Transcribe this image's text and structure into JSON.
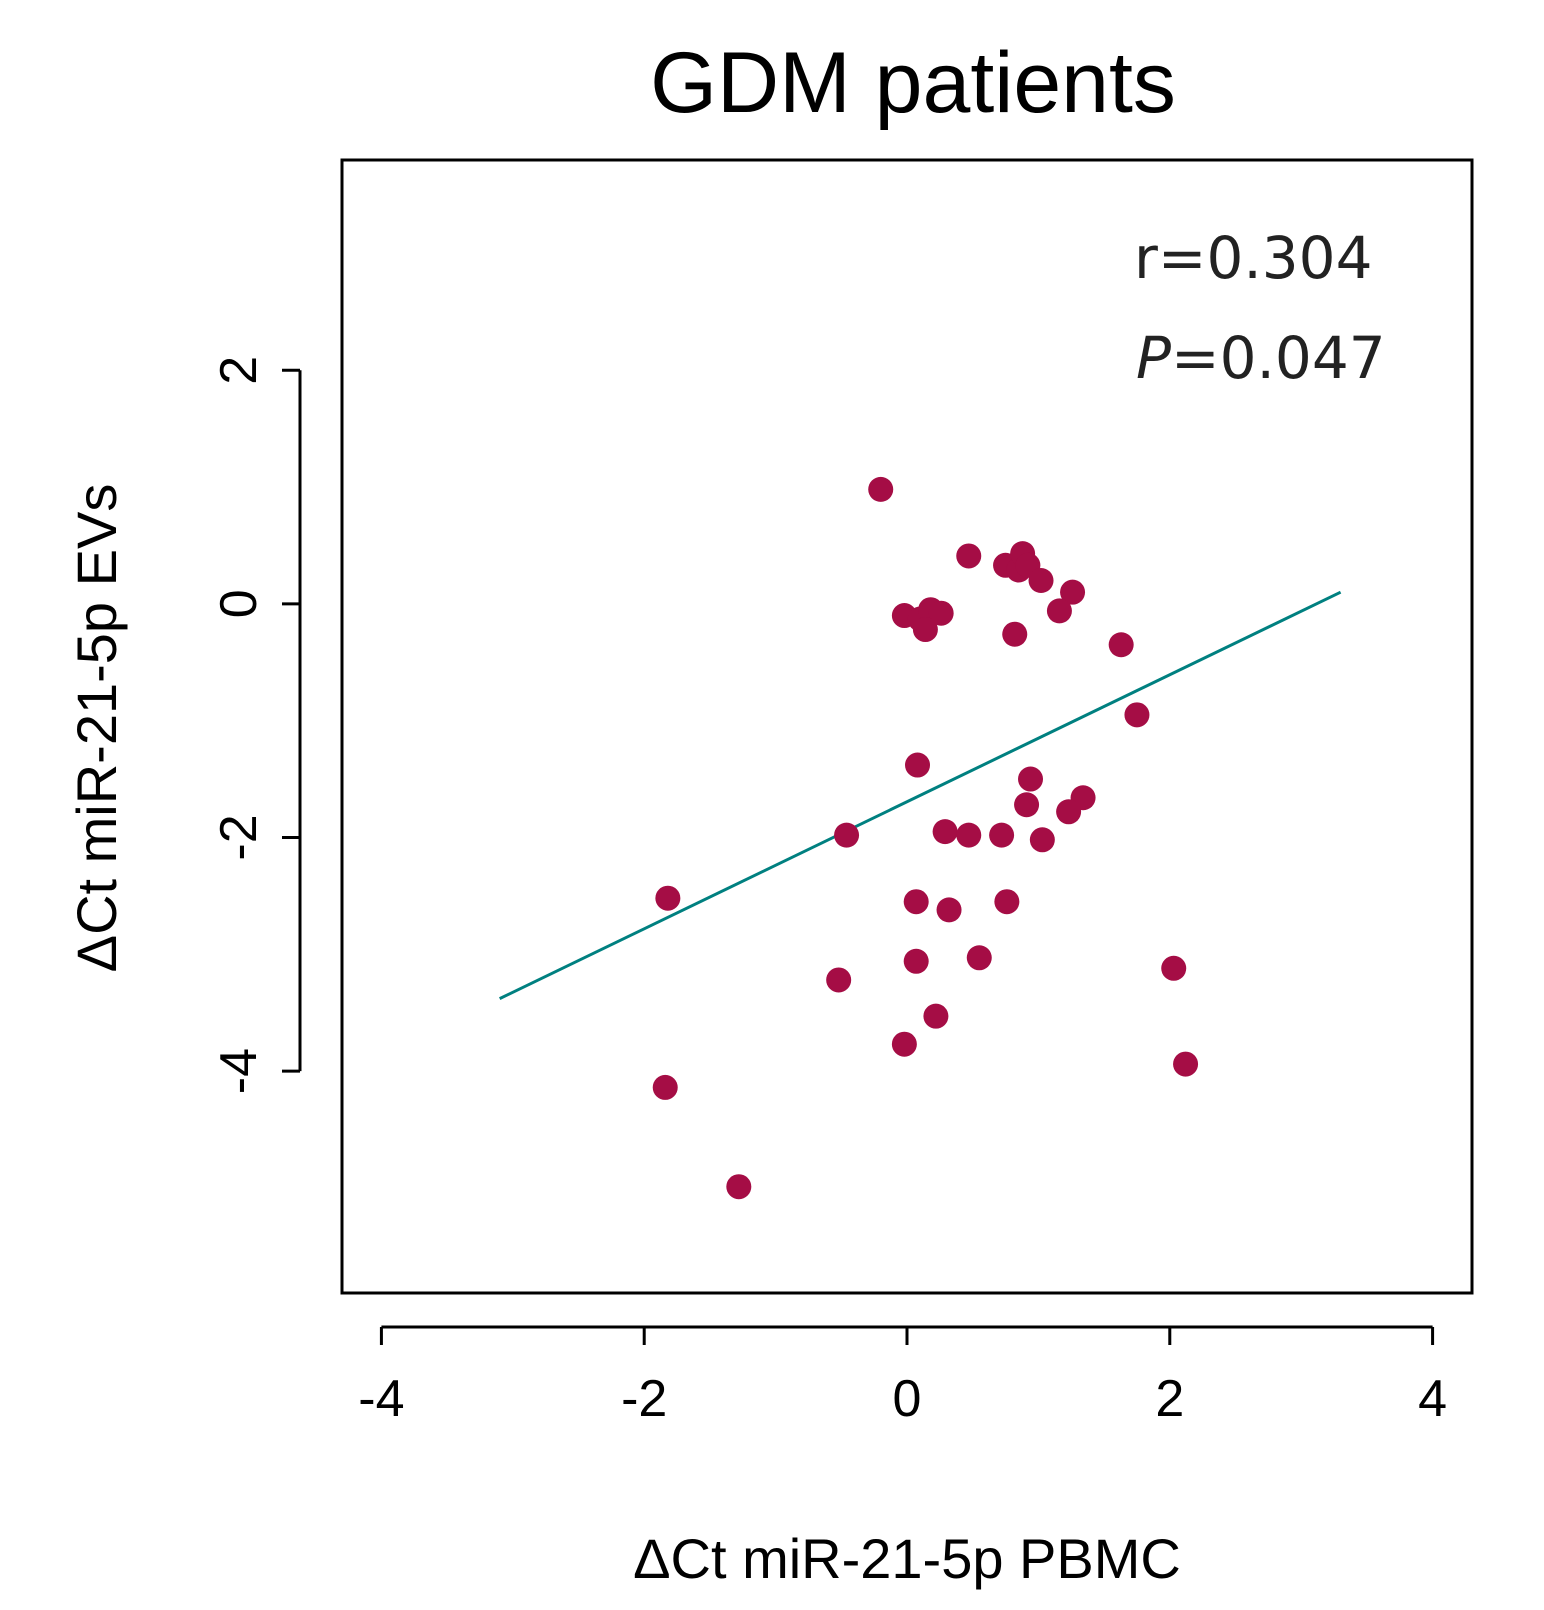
{
  "chart_data": {
    "type": "scatter",
    "title": "GDM patients",
    "xlabel": "ΔCt miR-21-5p PBMC",
    "ylabel": "ΔCt miR-21-5p EVs",
    "xlim": [
      -4.3,
      4.3
    ],
    "ylim": [
      -5.9,
      3.8
    ],
    "x_ticks": [
      -4,
      -2,
      0,
      2,
      4
    ],
    "x_tick_labels": [
      "-4",
      "-2",
      "0",
      "2",
      "4"
    ],
    "y_ticks": [
      -4,
      -2,
      0,
      2
    ],
    "y_tick_labels": [
      "-4",
      "-2",
      "0",
      "2"
    ],
    "grid": false,
    "point_color": "#a50d45",
    "line_color": "#008080",
    "series": [
      {
        "values": [
          {
            "x": -0.2,
            "y": 0.98
          },
          {
            "x": 0.47,
            "y": 0.41
          },
          {
            "x": 0.75,
            "y": 0.33
          },
          {
            "x": 0.85,
            "y": 0.29
          },
          {
            "x": 0.88,
            "y": 0.43
          },
          {
            "x": 0.92,
            "y": 0.33
          },
          {
            "x": 1.02,
            "y": 0.2
          },
          {
            "x": 1.26,
            "y": 0.1
          },
          {
            "x": 1.16,
            "y": -0.06
          },
          {
            "x": -0.02,
            "y": -0.1
          },
          {
            "x": 0.1,
            "y": -0.13
          },
          {
            "x": 0.18,
            "y": -0.05
          },
          {
            "x": 0.26,
            "y": -0.08
          },
          {
            "x": 0.14,
            "y": -0.22
          },
          {
            "x": 0.82,
            "y": -0.26
          },
          {
            "x": 1.63,
            "y": -0.35
          },
          {
            "x": 1.75,
            "y": -0.95
          },
          {
            "x": 0.08,
            "y": -1.38
          },
          {
            "x": 0.94,
            "y": -1.5
          },
          {
            "x": 0.91,
            "y": -1.72
          },
          {
            "x": 1.34,
            "y": -1.66
          },
          {
            "x": 1.23,
            "y": -1.78
          },
          {
            "x": -0.46,
            "y": -1.98
          },
          {
            "x": 0.29,
            "y": -1.95
          },
          {
            "x": 0.47,
            "y": -1.98
          },
          {
            "x": 0.72,
            "y": -1.98
          },
          {
            "x": 1.03,
            "y": -2.02
          },
          {
            "x": -1.82,
            "y": -2.52
          },
          {
            "x": 0.07,
            "y": -2.55
          },
          {
            "x": 0.32,
            "y": -2.62
          },
          {
            "x": 0.76,
            "y": -2.55
          },
          {
            "x": 0.07,
            "y": -3.06
          },
          {
            "x": 0.55,
            "y": -3.03
          },
          {
            "x": -0.52,
            "y": -3.22
          },
          {
            "x": 2.03,
            "y": -3.12
          },
          {
            "x": 0.22,
            "y": -3.53
          },
          {
            "x": -0.02,
            "y": -3.77
          },
          {
            "x": -1.84,
            "y": -4.14
          },
          {
            "x": 2.12,
            "y": -3.94
          },
          {
            "x": -1.28,
            "y": -4.99
          }
        ]
      }
    ],
    "fit_line": {
      "x": [
        -3.1,
        3.3
      ],
      "y": [
        -3.38,
        0.1
      ]
    },
    "annotations": [
      {
        "text": "r=0.304"
      },
      {
        "prefix": "P",
        "text": "=0.047"
      }
    ],
    "annotation_placement": "top-right"
  }
}
